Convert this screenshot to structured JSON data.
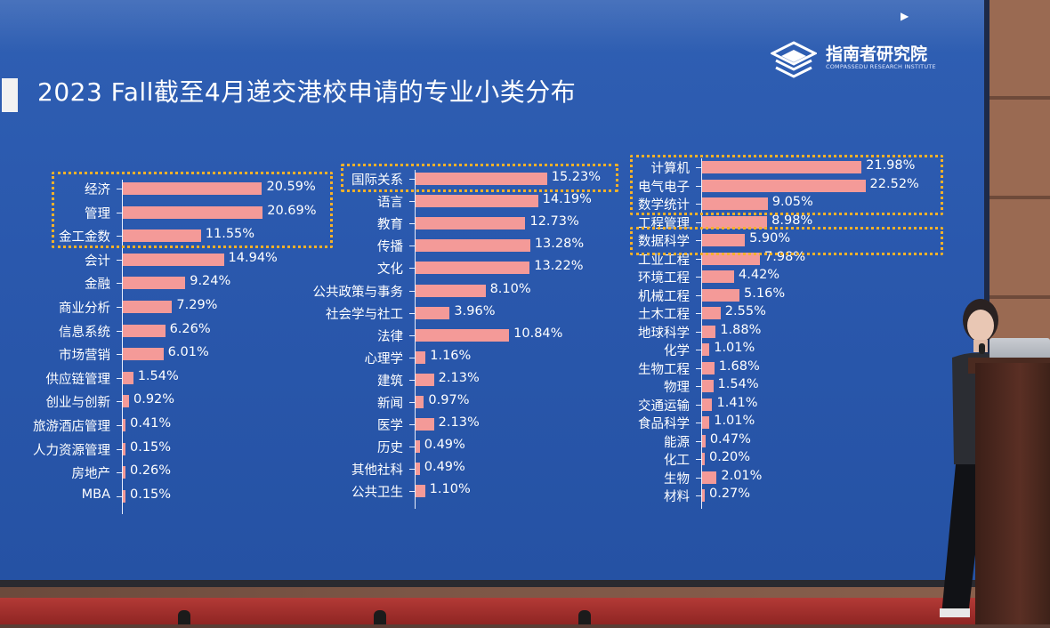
{
  "title": "2023 Fall截至4月递交港校申请的专业小类分布",
  "logo": {
    "cn": "指南者研究院",
    "en": "COMPASSEDU RESEARCH INSTITUTE"
  },
  "colors": {
    "bar": "#f49a98",
    "highlight": "#f5b12a",
    "slide_bg": "#2a58ad"
  },
  "chart_data": [
    {
      "type": "bar",
      "orientation": "horizontal",
      "categories": [
        "经济",
        "管理",
        "金工金数",
        "会计",
        "金融",
        "商业分析",
        "信息系统",
        "市场营销",
        "供应链管理",
        "创业与创新",
        "旅游酒店管理",
        "人力资源管理",
        "房地产",
        "MBA"
      ],
      "values": [
        20.59,
        20.69,
        11.55,
        14.94,
        9.24,
        7.29,
        6.26,
        6.01,
        1.54,
        0.92,
        0.41,
        0.15,
        0.26,
        0.15
      ],
      "labels": [
        "20.59%",
        "20.69%",
        "11.55%",
        "14.94%",
        "9.24%",
        "7.29%",
        "6.26%",
        "6.01%",
        "1.54%",
        "0.92%",
        "0.41%",
        "0.15%",
        "0.26%",
        "0.15%"
      ],
      "highlighted": [
        "经济",
        "管理",
        "金工金数"
      ]
    },
    {
      "type": "bar",
      "orientation": "horizontal",
      "categories": [
        "国际关系",
        "语言",
        "教育",
        "传播",
        "文化",
        "公共政策与事务",
        "社会学与社工",
        "法律",
        "心理学",
        "建筑",
        "新闻",
        "医学",
        "历史",
        "其他社科",
        "公共卫生"
      ],
      "values": [
        15.23,
        14.19,
        12.73,
        13.28,
        13.22,
        8.1,
        3.96,
        10.84,
        1.16,
        2.13,
        0.97,
        2.13,
        0.49,
        0.49,
        1.1
      ],
      "labels": [
        "15.23%",
        "14.19%",
        "12.73%",
        "13.28%",
        "13.22%",
        "8.10%",
        "3.96%",
        "10.84%",
        "1.16%",
        "2.13%",
        "0.97%",
        "2.13%",
        "0.49%",
        "0.49%",
        "1.10%"
      ],
      "highlighted": [
        "国际关系"
      ]
    },
    {
      "type": "bar",
      "orientation": "horizontal",
      "categories": [
        "计算机",
        "电气电子",
        "数学统计",
        "工程管理",
        "数据科学",
        "工业工程",
        "环境工程",
        "机械工程",
        "土木工程",
        "地球科学",
        "化学",
        "生物工程",
        "物理",
        "交通运输",
        "食品科学",
        "能源",
        "化工",
        "生物",
        "材料"
      ],
      "values": [
        21.98,
        22.52,
        9.05,
        8.98,
        5.9,
        7.98,
        4.42,
        5.16,
        2.55,
        1.88,
        1.01,
        1.68,
        1.54,
        1.41,
        1.01,
        0.47,
        0.2,
        2.01,
        0.27
      ],
      "labels": [
        "21.98%",
        "22.52%",
        "9.05%",
        "8.98%",
        "5.90%",
        "7.98%",
        "4.42%",
        "5.16%",
        "2.55%",
        "1.88%",
        "1.01%",
        "1.68%",
        "1.54%",
        "1.41%",
        "1.01%",
        "0.47%",
        "0.20%",
        "2.01%",
        "0.27%"
      ],
      "highlighted": [
        "计算机",
        "电气电子",
        "数学统计",
        "数据科学"
      ]
    }
  ]
}
